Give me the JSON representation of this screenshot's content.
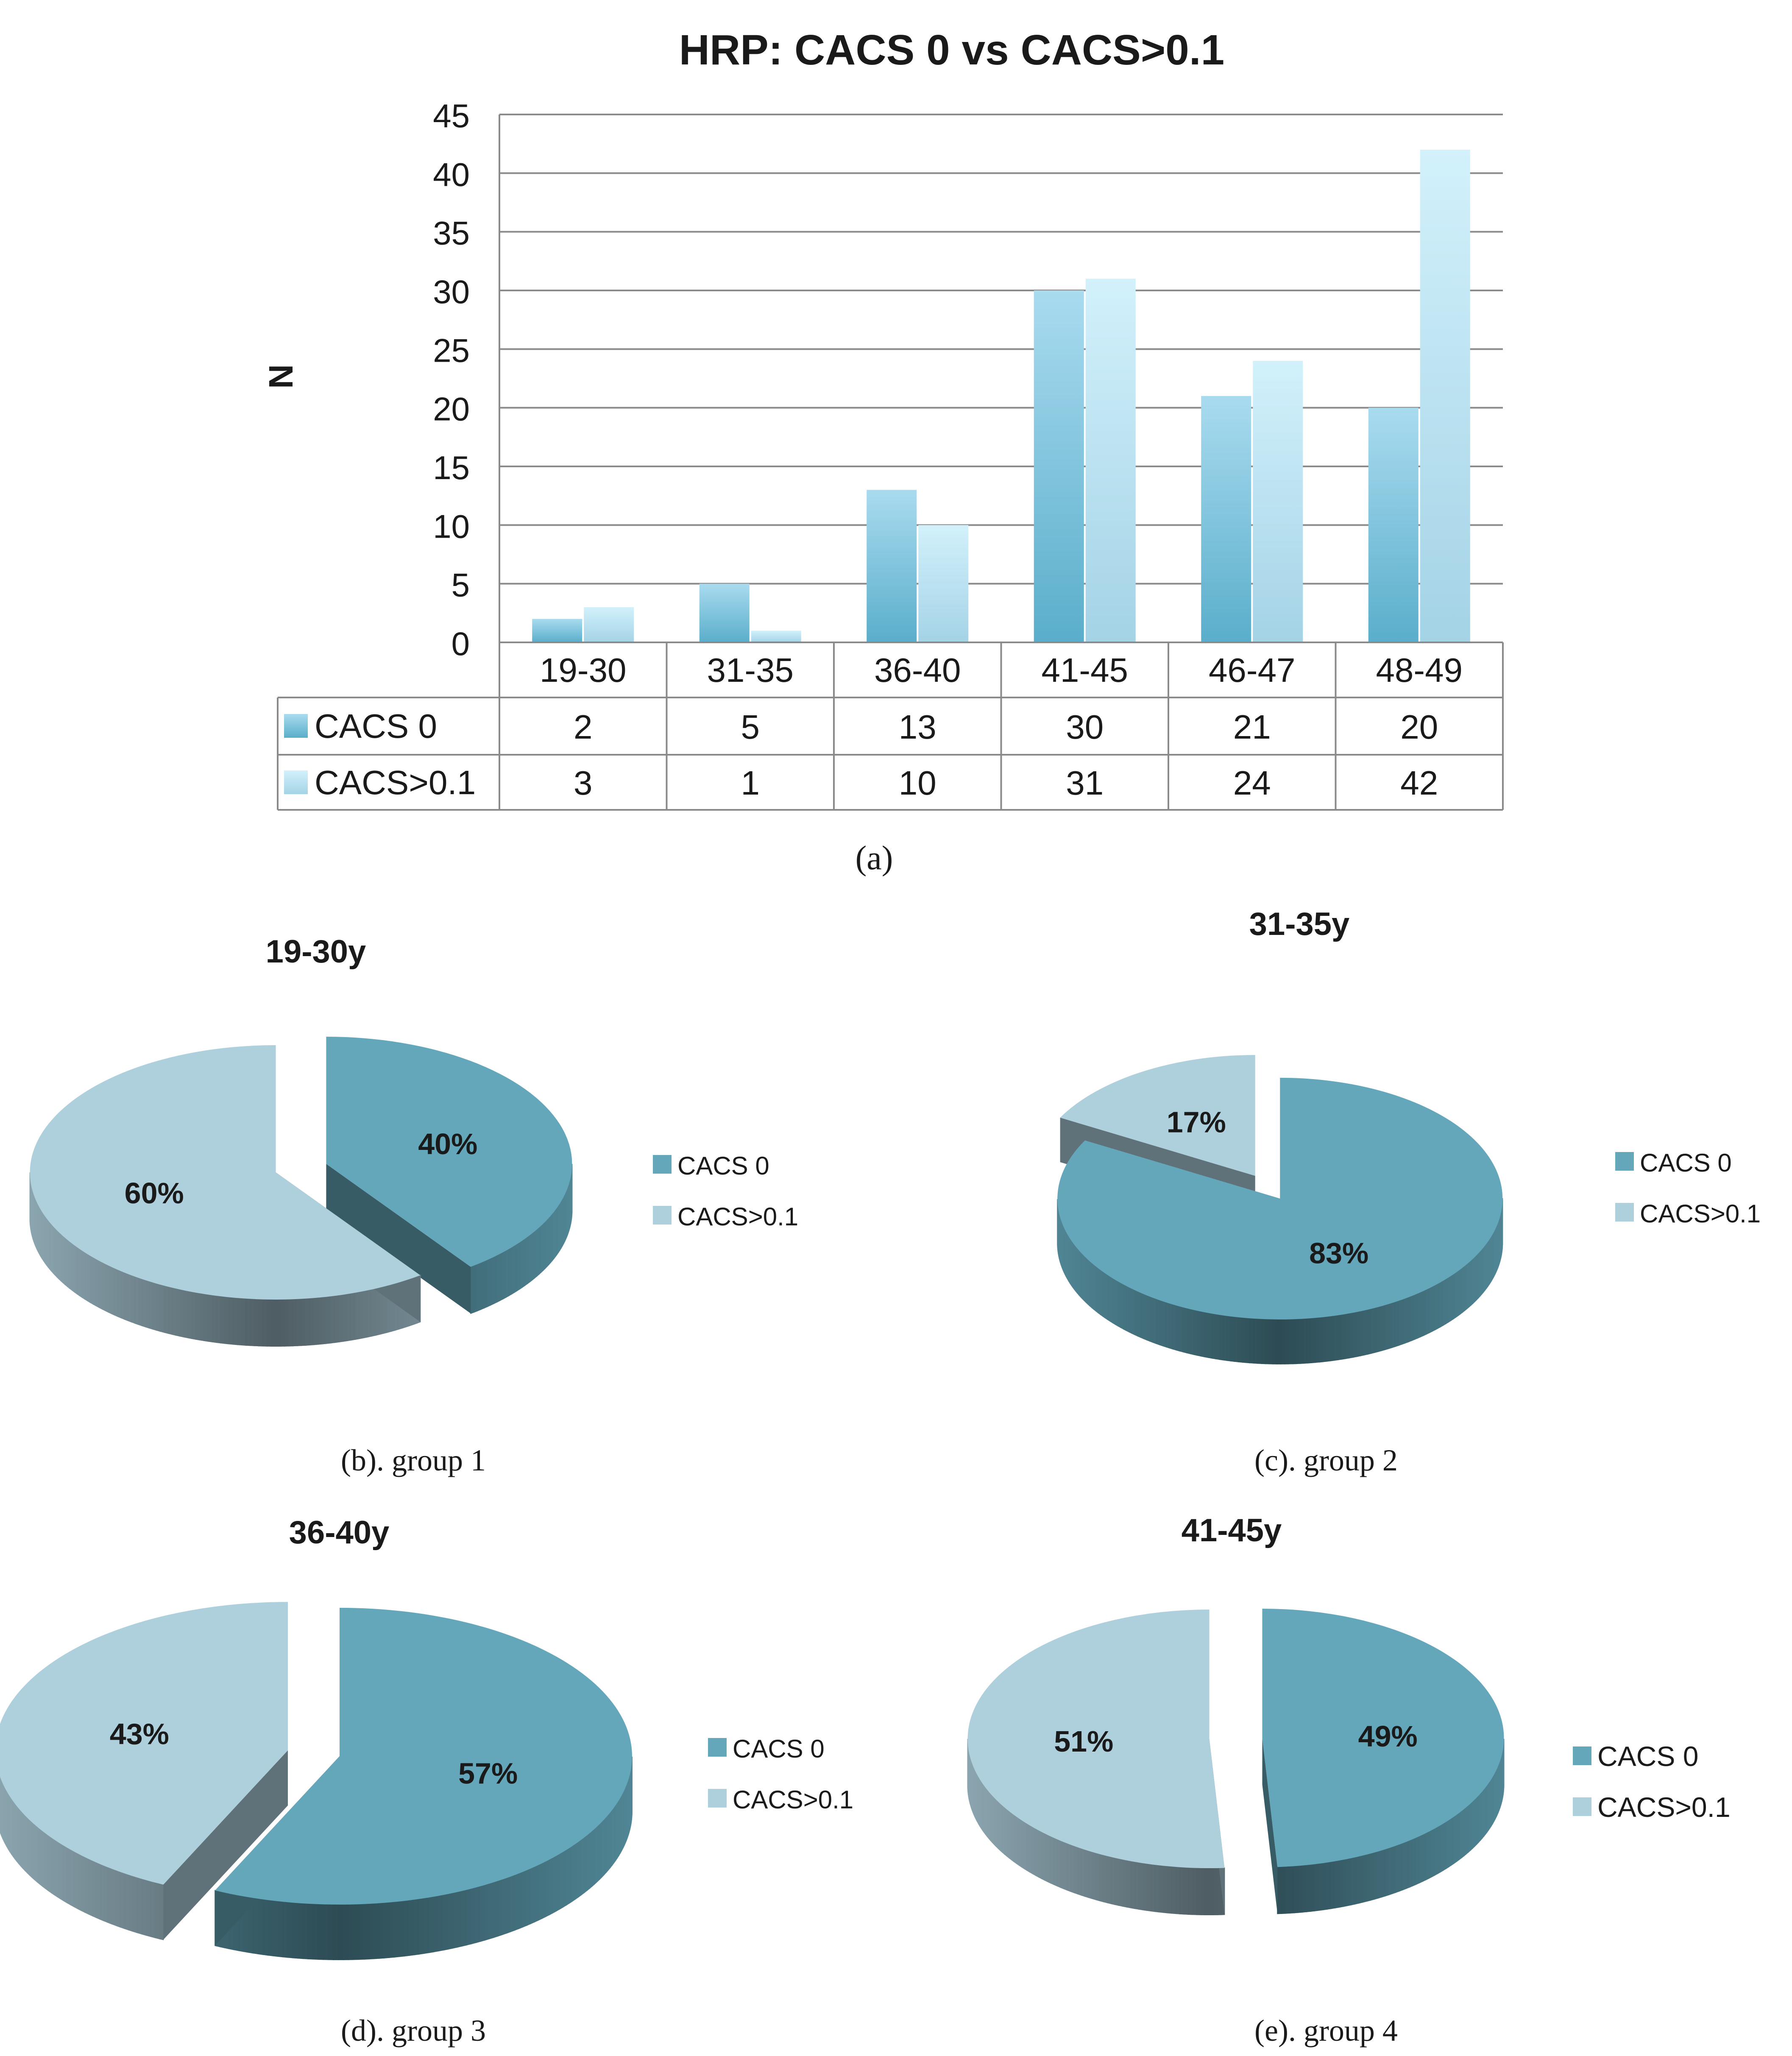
{
  "colors": {
    "cacs0": "#5bb1cf",
    "cacs01": "#c6ecf8",
    "pie_cacs0": "#64a7ba",
    "pie_cacs01": "#aecfdc",
    "grid": "#8a8a8a",
    "text": "#1a1a1a"
  },
  "chart_data": [
    {
      "type": "bar",
      "title": "HRP: CACS 0 vs CACS>0.1",
      "xlabel": "",
      "ylabel": "N",
      "ylim": [
        0,
        45
      ],
      "yticks": [
        "0",
        "5",
        "10",
        "15",
        "20",
        "25",
        "30",
        "35",
        "40",
        "45"
      ],
      "categories": [
        "19-30",
        "31-35",
        "36-40",
        "41-45",
        "46-47",
        "48-49"
      ],
      "series": [
        {
          "name": "CACS 0",
          "values": [
            2,
            5,
            13,
            30,
            21,
            20
          ]
        },
        {
          "name": "CACS>0.1",
          "values": [
            3,
            1,
            10,
            31,
            24,
            42
          ]
        }
      ],
      "data_table": true,
      "grid": true,
      "caption": "(a)"
    },
    {
      "type": "pie",
      "title": "19-30y",
      "labels": [
        "CACS 0",
        "CACS>0.1"
      ],
      "values": [
        40,
        60
      ],
      "value_labels": [
        "40%",
        "60%"
      ],
      "legend": "right",
      "caption": "(b). group 1"
    },
    {
      "type": "pie",
      "title": "31-35y",
      "labels": [
        "CACS 0",
        "CACS>0.1"
      ],
      "values": [
        83,
        17
      ],
      "value_labels": [
        "83%",
        "17%"
      ],
      "legend": "right",
      "caption": "(c). group 2"
    },
    {
      "type": "pie",
      "title": "36-40y",
      "labels": [
        "CACS 0",
        "CACS>0.1"
      ],
      "values": [
        57,
        43
      ],
      "value_labels": [
        "57%",
        "43%"
      ],
      "legend": "right",
      "caption": "(d). group 3"
    },
    {
      "type": "pie",
      "title": "41-45y",
      "labels": [
        "CACS 0",
        "CACS>0.1"
      ],
      "values": [
        49,
        51
      ],
      "value_labels": [
        "49%",
        "51%"
      ],
      "legend": "right",
      "caption": "(e). group 4"
    }
  ]
}
